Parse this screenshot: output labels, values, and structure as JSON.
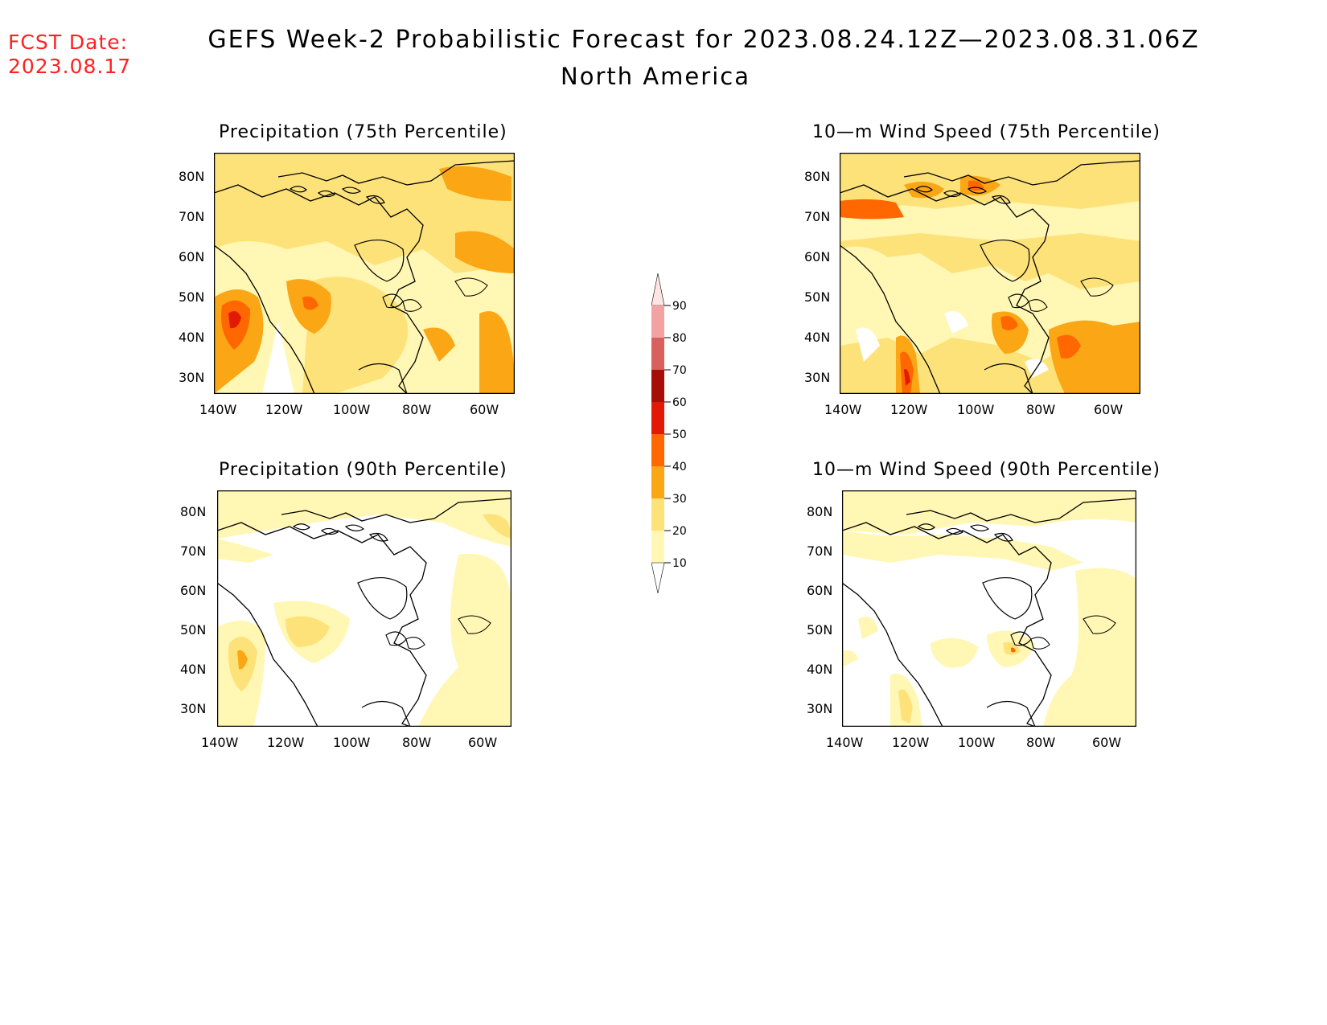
{
  "header": {
    "fcst_label": "FCST Date:",
    "fcst_date": "2023.08.17",
    "title": "GEFS Week-2 Probabilistic Forecast for 2023.08.24.12Z—2023.08.31.06Z",
    "region": "North America"
  },
  "panels": [
    {
      "id": "precip-75",
      "title": "Precipitation (75th Percentile)"
    },
    {
      "id": "wind-75",
      "title": "10—m Wind Speed (75th Percentile)"
    },
    {
      "id": "precip-90",
      "title": "Precipitation (90th Percentile)"
    },
    {
      "id": "wind-90",
      "title": "10—m Wind Speed (90th Percentile)"
    }
  ],
  "axes": {
    "lat_labels": [
      "80N",
      "70N",
      "60N",
      "50N",
      "40N",
      "30N"
    ],
    "lon_labels": [
      "140W",
      "120W",
      "100W",
      "80W",
      "60W"
    ]
  },
  "colorbar": {
    "levels": [
      "10",
      "20",
      "30",
      "40",
      "50",
      "60",
      "70",
      "80",
      "90"
    ],
    "colors": [
      "#fff7b3",
      "#fde27a",
      "#fba614",
      "#ff6700",
      "#e21a05",
      "#a50f05",
      "#d9615d",
      "#f4a1a1",
      "#ffe4e4"
    ]
  }
}
